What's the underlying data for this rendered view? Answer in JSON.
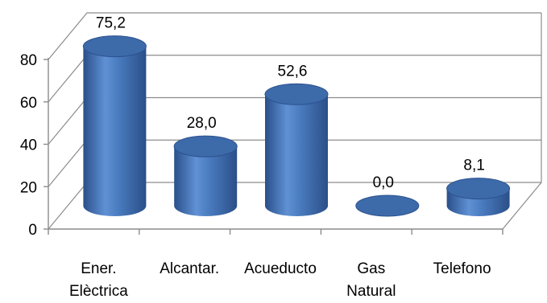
{
  "chart_data": {
    "type": "bar",
    "style": "3d-cylinder",
    "categories": [
      [
        "Ener.",
        "Elèctrica"
      ],
      [
        "Alcantar."
      ],
      [
        "Acueducto"
      ],
      [
        "Gas",
        "Natural"
      ],
      [
        "Telefono"
      ]
    ],
    "values": [
      75.2,
      28.0,
      52.6,
      0.0,
      8.1
    ],
    "data_labels": [
      "75,2",
      "28,0",
      "52,6",
      "0,0",
      "8,1"
    ],
    "y_ticks": [
      "0",
      "20",
      "40",
      "60",
      "80"
    ],
    "ylim": [
      0,
      80
    ],
    "grid": true,
    "bar_color": "#4F81BD",
    "bar_dark": "#2c5190",
    "bar_top": "#3d6aa8"
  }
}
